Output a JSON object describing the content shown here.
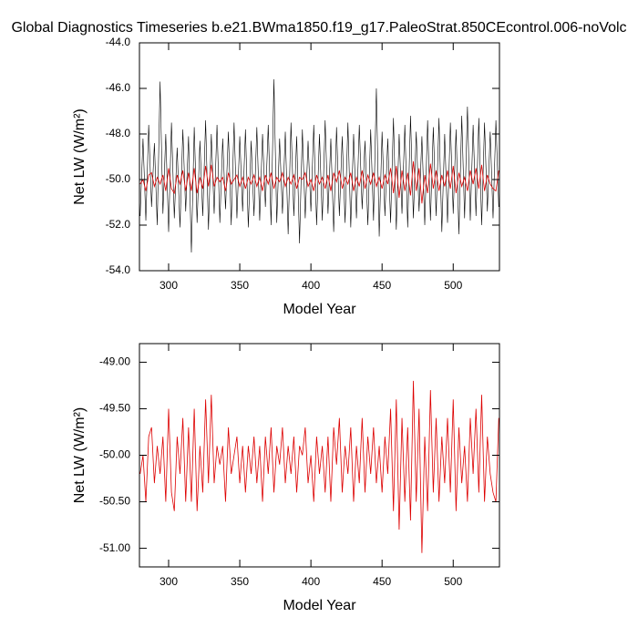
{
  "chart_data": [
    {
      "type": "line",
      "title": "Global Diagnostics Timeseries b.e21.BWma1850.f19_g17.PaleoStrat.850CEcontrol.006-noVolc",
      "x_label": "Model Year",
      "y_label": "Net LW (W/m²)",
      "xlim": [
        279.5,
        532.5
      ],
      "xticks": [
        300,
        350,
        400,
        450,
        500
      ],
      "ylim": [
        -54,
        -44
      ],
      "yticks": [
        {
          "value": -54,
          "label": "-54.0"
        },
        {
          "value": -52,
          "label": "-52.0"
        },
        {
          "value": -50,
          "label": "-50.0"
        },
        {
          "value": -48,
          "label": "-48.0"
        },
        {
          "value": -46,
          "label": "-46.0"
        },
        {
          "value": -44,
          "label": "-44.0"
        }
      ],
      "x": [
        280,
        282,
        284,
        286,
        288,
        290,
        292,
        294,
        296,
        298,
        300,
        302,
        304,
        306,
        308,
        310,
        312,
        314,
        316,
        318,
        320,
        322,
        324,
        326,
        328,
        330,
        332,
        334,
        336,
        338,
        340,
        342,
        344,
        346,
        348,
        350,
        352,
        354,
        356,
        358,
        360,
        362,
        364,
        366,
        368,
        370,
        372,
        374,
        376,
        378,
        380,
        382,
        384,
        386,
        388,
        390,
        392,
        394,
        396,
        398,
        400,
        402,
        404,
        406,
        408,
        410,
        412,
        414,
        416,
        418,
        420,
        422,
        424,
        426,
        428,
        430,
        432,
        434,
        436,
        438,
        440,
        442,
        444,
        446,
        448,
        450,
        452,
        454,
        456,
        458,
        460,
        462,
        464,
        466,
        468,
        470,
        472,
        474,
        476,
        478,
        480,
        482,
        484,
        486,
        488,
        490,
        492,
        494,
        496,
        498,
        500,
        502,
        504,
        506,
        508,
        510,
        512,
        514,
        516,
        518,
        520,
        522,
        524,
        526,
        528,
        530,
        532
      ],
      "series": [
        {
          "color": "#000000",
          "width": 0.6,
          "values": [
            -51.6,
            -48.2,
            -51.8,
            -47.6,
            -51.2,
            -48.4,
            -52.0,
            -45.7,
            -51.5,
            -48.0,
            -52.3,
            -47.5,
            -51.7,
            -48.6,
            -52.1,
            -47.8,
            -51.4,
            -48.1,
            -53.2,
            -47.7,
            -51.9,
            -48.3,
            -51.6,
            -47.4,
            -52.2,
            -48.0,
            -51.5,
            -47.6,
            -51.9,
            -48.2,
            -51.3,
            -47.9,
            -52.0,
            -47.5,
            -51.7,
            -48.1,
            -51.4,
            -47.8,
            -52.1,
            -48.3,
            -51.6,
            -47.7,
            -51.8,
            -48.0,
            -51.2,
            -47.6,
            -52.0,
            -45.6,
            -51.9,
            -48.2,
            -51.5,
            -47.9,
            -52.4,
            -47.5,
            -51.6,
            -48.1,
            -52.8,
            -47.8,
            -51.7,
            -48.3,
            -51.4,
            -47.6,
            -52.0,
            -48.0,
            -51.8,
            -47.4,
            -51.5,
            -48.2,
            -52.3,
            -47.7,
            -51.6,
            -48.1,
            -51.9,
            -47.5,
            -52.1,
            -48.0,
            -51.7,
            -47.6,
            -51.3,
            -48.3,
            -52.0,
            -47.8,
            -51.8,
            -46.0,
            -52.5,
            -47.9,
            -51.6,
            -48.2,
            -51.9,
            -47.3,
            -52.2,
            -48.0,
            -51.5,
            -47.6,
            -52.1,
            -47.2,
            -51.7,
            -47.9,
            -51.4,
            -48.1,
            -52.0,
            -47.4,
            -51.8,
            -47.7,
            -51.6,
            -47.3,
            -52.3,
            -48.0,
            -51.9,
            -47.5,
            -51.5,
            -47.8,
            -52.4,
            -47.2,
            -51.7,
            -46.8,
            -51.8,
            -47.6,
            -51.6,
            -47.3,
            -52.0,
            -47.5,
            -51.4,
            -47.9,
            -51.7,
            -47.4,
            -51.2
          ]
        },
        {
          "color": "#dd0000",
          "width": 0.8,
          "values": [
            -50.2,
            -50.0,
            -50.5,
            -49.8,
            -49.7,
            -50.3,
            -49.9,
            -50.2,
            -49.8,
            -50.5,
            -49.5,
            -50.4,
            -50.6,
            -49.8,
            -50.2,
            -49.6,
            -50.5,
            -49.7,
            -50.5,
            -49.5,
            -50.6,
            -49.9,
            -50.4,
            -49.4,
            -50.3,
            -49.35,
            -50.3,
            -49.9,
            -50.1,
            -49.9,
            -50.5,
            -49.7,
            -50.2,
            -50.0,
            -49.8,
            -50.3,
            -49.9,
            -50.4,
            -49.9,
            -50.2,
            -49.8,
            -50.3,
            -49.9,
            -50.5,
            -49.8,
            -50.2,
            -49.7,
            -50.4,
            -49.9,
            -50.1,
            -49.7,
            -50.3,
            -49.9,
            -50.2,
            -49.8,
            -50.4,
            -49.9,
            -50.0,
            -49.7,
            -50.3,
            -50.0,
            -50.5,
            -49.8,
            -50.2,
            -49.9,
            -50.4,
            -49.8,
            -50.5,
            -49.7,
            -50.1,
            -49.6,
            -50.4,
            -49.9,
            -50.2,
            -49.7,
            -50.5,
            -49.9,
            -50.3,
            -49.6,
            -50.4,
            -49.8,
            -50.2,
            -49.7,
            -50.3,
            -49.9,
            -50.4,
            -49.8,
            -50.2,
            -49.5,
            -50.6,
            -49.4,
            -50.8,
            -49.6,
            -50.5,
            -49.7,
            -50.7,
            -49.2,
            -50.5,
            -49.5,
            -51.05,
            -49.8,
            -50.6,
            -49.3,
            -50.4,
            -49.6,
            -50.5,
            -49.8,
            -50.3,
            -49.6,
            -50.4,
            -49.4,
            -50.6,
            -49.7,
            -50.3,
            -49.9,
            -50.5,
            -49.6,
            -50.2,
            -49.5,
            -50.4,
            -49.35,
            -50.5,
            -49.8,
            -50.2,
            -50.4,
            -50.5,
            -49.6
          ]
        }
      ]
    },
    {
      "type": "line",
      "x_label": "Model Year",
      "y_label": "Net LW (W/m²)",
      "xlim": [
        279.5,
        532.5
      ],
      "xticks": [
        300,
        350,
        400,
        450,
        500
      ],
      "ylim": [
        -51.2,
        -48.8
      ],
      "yticks": [
        {
          "value": -51,
          "label": "-51.00"
        },
        {
          "value": -50.5,
          "label": "-50.50"
        },
        {
          "value": -50,
          "label": "-50.00"
        },
        {
          "value": -49.5,
          "label": "-49.50"
        },
        {
          "value": -49,
          "label": "-49.00"
        }
      ],
      "x": [
        280,
        282,
        284,
        286,
        288,
        290,
        292,
        294,
        296,
        298,
        300,
        302,
        304,
        306,
        308,
        310,
        312,
        314,
        316,
        318,
        320,
        322,
        324,
        326,
        328,
        330,
        332,
        334,
        336,
        338,
        340,
        342,
        344,
        346,
        348,
        350,
        352,
        354,
        356,
        358,
        360,
        362,
        364,
        366,
        368,
        370,
        372,
        374,
        376,
        378,
        380,
        382,
        384,
        386,
        388,
        390,
        392,
        394,
        396,
        398,
        400,
        402,
        404,
        406,
        408,
        410,
        412,
        414,
        416,
        418,
        420,
        422,
        424,
        426,
        428,
        430,
        432,
        434,
        436,
        438,
        440,
        442,
        444,
        446,
        448,
        450,
        452,
        454,
        456,
        458,
        460,
        462,
        464,
        466,
        468,
        470,
        472,
        474,
        476,
        478,
        480,
        482,
        484,
        486,
        488,
        490,
        492,
        494,
        496,
        498,
        500,
        502,
        504,
        506,
        508,
        510,
        512,
        514,
        516,
        518,
        520,
        522,
        524,
        526,
        528,
        530,
        532
      ],
      "series": [
        {
          "color": "#dd0000",
          "width": 0.8,
          "values": [
            -50.2,
            -50.0,
            -50.5,
            -49.8,
            -49.7,
            -50.3,
            -49.9,
            -50.2,
            -49.8,
            -50.5,
            -49.5,
            -50.4,
            -50.6,
            -49.8,
            -50.2,
            -49.6,
            -50.5,
            -49.7,
            -50.5,
            -49.5,
            -50.6,
            -49.9,
            -50.4,
            -49.4,
            -50.3,
            -49.35,
            -50.3,
            -49.9,
            -50.1,
            -49.9,
            -50.5,
            -49.7,
            -50.2,
            -50.0,
            -49.8,
            -50.3,
            -49.9,
            -50.4,
            -49.9,
            -50.2,
            -49.8,
            -50.3,
            -49.9,
            -50.5,
            -49.8,
            -50.2,
            -49.7,
            -50.4,
            -49.9,
            -50.1,
            -49.7,
            -50.3,
            -49.9,
            -50.2,
            -49.8,
            -50.4,
            -49.9,
            -50.0,
            -49.7,
            -50.3,
            -50.0,
            -50.5,
            -49.8,
            -50.2,
            -49.9,
            -50.4,
            -49.8,
            -50.5,
            -49.7,
            -50.1,
            -49.6,
            -50.4,
            -49.9,
            -50.2,
            -49.7,
            -50.5,
            -49.9,
            -50.3,
            -49.6,
            -50.4,
            -49.8,
            -50.2,
            -49.7,
            -50.3,
            -49.9,
            -50.4,
            -49.8,
            -50.2,
            -49.5,
            -50.6,
            -49.4,
            -50.8,
            -49.6,
            -50.5,
            -49.7,
            -50.7,
            -49.2,
            -50.5,
            -49.5,
            -51.05,
            -49.8,
            -50.6,
            -49.3,
            -50.4,
            -49.6,
            -50.5,
            -49.8,
            -50.3,
            -49.6,
            -50.4,
            -49.4,
            -50.6,
            -49.7,
            -50.3,
            -49.9,
            -50.5,
            -49.6,
            -50.2,
            -49.5,
            -50.4,
            -49.35,
            -50.5,
            -49.8,
            -50.2,
            -50.4,
            -50.5,
            -49.6
          ]
        }
      ]
    }
  ]
}
